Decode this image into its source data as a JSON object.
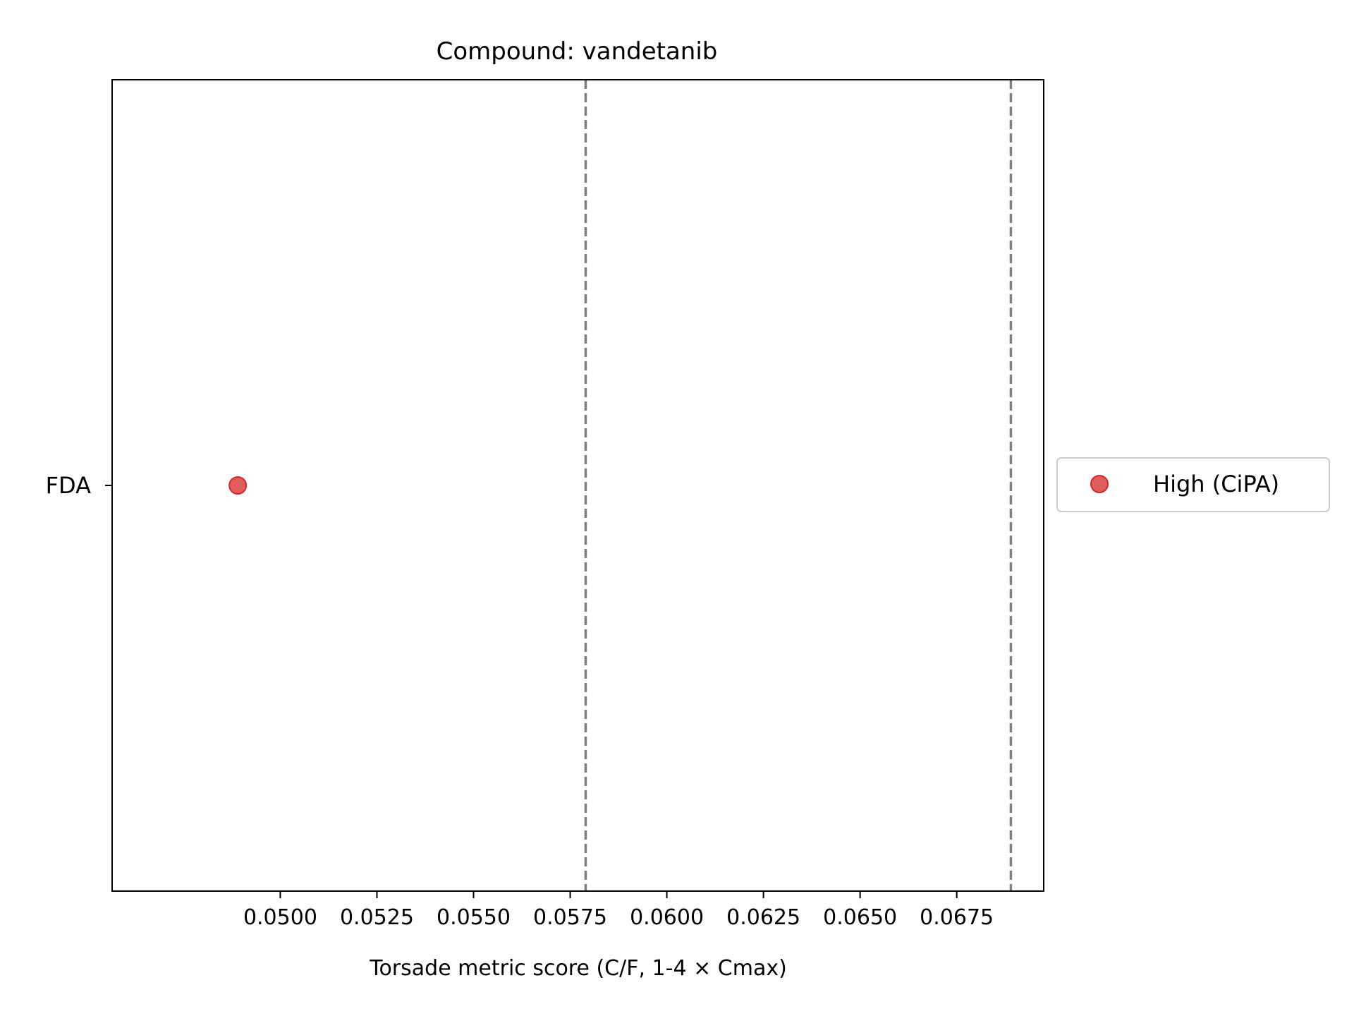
{
  "chart_data": {
    "type": "scatter",
    "title": "Compound: vandetanib",
    "xlabel": "Torsade metric score (C/F, 1-4 × Cmax)",
    "ylabel": "",
    "xlim": [
      0.04565,
      0.06975
    ],
    "x_ticks": [
      0.05,
      0.0525,
      0.055,
      0.0575,
      0.06,
      0.0625,
      0.065,
      0.0675
    ],
    "x_tick_labels": [
      "0.0500",
      "0.0525",
      "0.0550",
      "0.0575",
      "0.0600",
      "0.0625",
      "0.0650",
      "0.0675"
    ],
    "categories": [
      "FDA"
    ],
    "series": [
      {
        "name": "High (CiPA)",
        "color": "#d62728",
        "points": [
          {
            "x": 0.0489,
            "y": "FDA"
          }
        ]
      }
    ],
    "thresholds": [
      {
        "x": 0.0579,
        "style": "dashed",
        "color": "#808080"
      },
      {
        "x": 0.0689,
        "style": "dashed",
        "color": "#808080"
      }
    ],
    "grid": false,
    "legend": {
      "placement": "outside-right"
    }
  }
}
